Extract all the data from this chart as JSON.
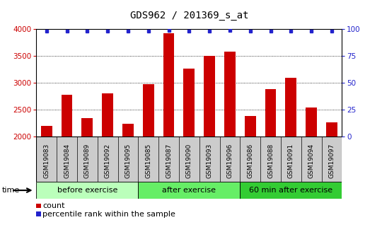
{
  "title": "GDS962 / 201369_s_at",
  "categories": [
    "GSM19083",
    "GSM19084",
    "GSM19089",
    "GSM19092",
    "GSM19095",
    "GSM19085",
    "GSM19087",
    "GSM19090",
    "GSM19093",
    "GSM19096",
    "GSM19086",
    "GSM19088",
    "GSM19091",
    "GSM19094",
    "GSM19097"
  ],
  "counts": [
    2200,
    2780,
    2350,
    2810,
    2240,
    2980,
    3920,
    3270,
    3500,
    3590,
    2380,
    2890,
    3090,
    2540,
    2270
  ],
  "percentile_ranks": [
    98,
    98,
    98,
    98,
    98,
    98,
    99,
    98,
    98,
    99,
    98,
    98,
    98,
    98,
    98
  ],
  "groups": [
    {
      "label": "before exercise",
      "start": 0,
      "end": 5
    },
    {
      "label": "after exercise",
      "start": 5,
      "end": 10
    },
    {
      "label": "60 min after exercise",
      "start": 10,
      "end": 15
    }
  ],
  "group_colors": [
    "#bbffbb",
    "#66ee66",
    "#33cc33"
  ],
  "ylim": [
    2000,
    4000
  ],
  "yticks_left": [
    2000,
    2500,
    3000,
    3500,
    4000
  ],
  "yticks_right": [
    0,
    25,
    50,
    75,
    100
  ],
  "bar_color": "#cc0000",
  "dot_color": "#2222cc",
  "tick_bg_color": "#cccccc",
  "plot_bg": "#ffffff",
  "axis_color_left": "#cc0000",
  "axis_color_right": "#2222cc",
  "time_label": "time",
  "legend_count_label": "count",
  "legend_pct_label": "percentile rank within the sample",
  "bar_width": 0.55,
  "title_fontsize": 10,
  "tick_label_fontsize": 6.5,
  "group_label_fontsize": 8
}
